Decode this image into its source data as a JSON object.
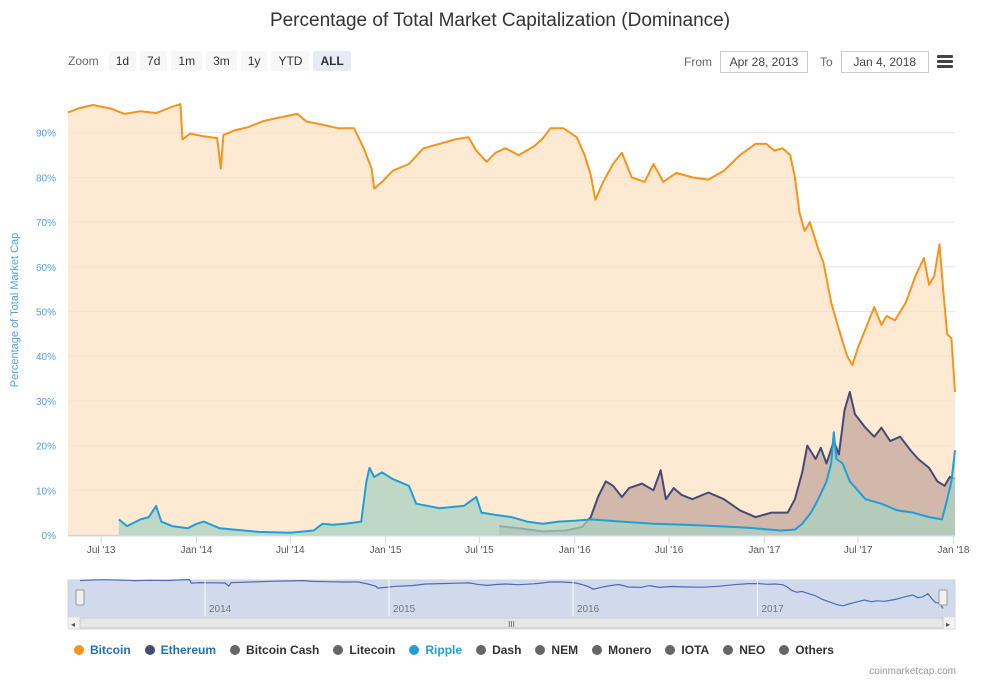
{
  "title": "Percentage of Total Market Capitalization (Dominance)",
  "zoom": {
    "label": "Zoom",
    "buttons": [
      "1d",
      "7d",
      "1m",
      "3m",
      "1y",
      "YTD",
      "ALL"
    ],
    "selected": "ALL"
  },
  "range": {
    "from_label": "From",
    "from_value": "Apr 28, 2013",
    "to_label": "To",
    "to_value": "Jan 4, 2018"
  },
  "navigator": {
    "year_labels": [
      "2014",
      "2015",
      "2016",
      "2017"
    ],
    "scroll_thumb": "III"
  },
  "legend": [
    {
      "name": "Bitcoin",
      "color": "#f7931a",
      "active": true
    },
    {
      "name": "Ethereum",
      "color": "#454a75",
      "active": true
    },
    {
      "name": "Bitcoin Cash",
      "color": "#666666",
      "active": false
    },
    {
      "name": "Litecoin",
      "color": "#666666",
      "active": false
    },
    {
      "name": "Ripple",
      "color": "#1f9fd8",
      "active": true
    },
    {
      "name": "Dash",
      "color": "#666666",
      "active": false
    },
    {
      "name": "NEM",
      "color": "#666666",
      "active": false
    },
    {
      "name": "Monero",
      "color": "#666666",
      "active": false
    },
    {
      "name": "IOTA",
      "color": "#666666",
      "active": false
    },
    {
      "name": "NEO",
      "color": "#666666",
      "active": false
    },
    {
      "name": "Others",
      "color": "#666666",
      "active": false
    }
  ],
  "credit": "coinmarketcap.com",
  "chart_data": {
    "type": "area",
    "title": "Percentage of Total Market Capitalization (Dominance)",
    "ylabel": "Percentage of Total Market Cap",
    "ylim": [
      0,
      100
    ],
    "xlim": [
      "2013-04-28",
      "2018-01-04"
    ],
    "y_ticks": [
      "0%",
      "10%",
      "20%",
      "30%",
      "40%",
      "50%",
      "60%",
      "70%",
      "80%",
      "90%"
    ],
    "x_ticks": [
      {
        "label": "Jul '13",
        "date": "2013-07-01"
      },
      {
        "label": "Jan '14",
        "date": "2014-01-01"
      },
      {
        "label": "Jul '14",
        "date": "2014-07-01"
      },
      {
        "label": "Jan '15",
        "date": "2015-01-01"
      },
      {
        "label": "Jul '15",
        "date": "2015-07-01"
      },
      {
        "label": "Jan '16",
        "date": "2016-01-01"
      },
      {
        "label": "Jul '16",
        "date": "2016-07-01"
      },
      {
        "label": "Jan '17",
        "date": "2017-01-01"
      },
      {
        "label": "Jul '17",
        "date": "2017-07-01"
      },
      {
        "label": "Jan '18",
        "date": "2018-01-01"
      }
    ],
    "grid": true,
    "legend_position": "bottom",
    "series": [
      {
        "name": "Bitcoin",
        "color": "#f7931a",
        "fill": "#fde3c4",
        "points": [
          [
            "2013-04-28",
            94.5
          ],
          [
            "2013-05-20",
            95.5
          ],
          [
            "2013-06-15",
            96.2
          ],
          [
            "2013-07-20",
            95.4
          ],
          [
            "2013-08-15",
            94.2
          ],
          [
            "2013-09-15",
            94.8
          ],
          [
            "2013-10-15",
            94.4
          ],
          [
            "2013-11-15",
            95.8
          ],
          [
            "2013-12-01",
            96.4
          ],
          [
            "2013-12-05",
            88.5
          ],
          [
            "2013-12-20",
            89.8
          ],
          [
            "2014-01-15",
            89.2
          ],
          [
            "2014-02-10",
            88.8
          ],
          [
            "2014-02-17",
            82.0
          ],
          [
            "2014-02-22",
            89.5
          ],
          [
            "2014-03-15",
            90.5
          ],
          [
            "2014-04-10",
            91.2
          ],
          [
            "2014-05-10",
            92.6
          ],
          [
            "2014-06-10",
            93.4
          ],
          [
            "2014-07-15",
            94.2
          ],
          [
            "2014-08-01",
            92.5
          ],
          [
            "2014-09-01",
            91.8
          ],
          [
            "2014-10-01",
            91.0
          ],
          [
            "2014-11-01",
            91.0
          ],
          [
            "2014-11-20",
            86.5
          ],
          [
            "2014-12-05",
            82.0
          ],
          [
            "2014-12-10",
            77.5
          ],
          [
            "2014-12-25",
            79.0
          ],
          [
            "2015-01-15",
            81.5
          ],
          [
            "2015-02-15",
            83.0
          ],
          [
            "2015-03-15",
            86.5
          ],
          [
            "2015-04-15",
            87.5
          ],
          [
            "2015-05-15",
            88.5
          ],
          [
            "2015-06-10",
            89.0
          ],
          [
            "2015-06-25",
            86.0
          ],
          [
            "2015-07-15",
            83.5
          ],
          [
            "2015-08-01",
            85.5
          ],
          [
            "2015-08-20",
            86.5
          ],
          [
            "2015-09-15",
            85.0
          ],
          [
            "2015-10-15",
            87.0
          ],
          [
            "2015-11-01",
            88.8
          ],
          [
            "2015-11-15",
            91.0
          ],
          [
            "2015-12-10",
            91.0
          ],
          [
            "2016-01-05",
            89.0
          ],
          [
            "2016-01-20",
            85.0
          ],
          [
            "2016-02-01",
            80.5
          ],
          [
            "2016-02-10",
            75.0
          ],
          [
            "2016-02-25",
            79.0
          ],
          [
            "2016-03-15",
            83.0
          ],
          [
            "2016-04-01",
            85.5
          ],
          [
            "2016-04-20",
            80.0
          ],
          [
            "2016-05-15",
            79.0
          ],
          [
            "2016-06-01",
            83.0
          ],
          [
            "2016-06-20",
            79.0
          ],
          [
            "2016-07-15",
            81.0
          ],
          [
            "2016-08-15",
            80.0
          ],
          [
            "2016-09-15",
            79.5
          ],
          [
            "2016-10-15",
            81.5
          ],
          [
            "2016-11-15",
            85.0
          ],
          [
            "2016-12-15",
            87.5
          ],
          [
            "2017-01-05",
            87.5
          ],
          [
            "2017-01-20",
            86.0
          ],
          [
            "2017-02-05",
            86.5
          ],
          [
            "2017-02-20",
            85.0
          ],
          [
            "2017-03-01",
            80.0
          ],
          [
            "2017-03-10",
            72.0
          ],
          [
            "2017-03-20",
            68.0
          ],
          [
            "2017-03-30",
            70.0
          ],
          [
            "2017-04-15",
            64.0
          ],
          [
            "2017-04-25",
            61.0
          ],
          [
            "2017-05-10",
            52.0
          ],
          [
            "2017-05-25",
            46.0
          ],
          [
            "2017-06-10",
            40.0
          ],
          [
            "2017-06-20",
            38.0
          ],
          [
            "2017-07-01",
            42.0
          ],
          [
            "2017-07-15",
            46.0
          ],
          [
            "2017-08-01",
            51.0
          ],
          [
            "2017-08-15",
            47.0
          ],
          [
            "2017-08-25",
            49.0
          ],
          [
            "2017-09-10",
            48.0
          ],
          [
            "2017-10-01",
            52.0
          ],
          [
            "2017-10-20",
            58.0
          ],
          [
            "2017-11-05",
            62.0
          ],
          [
            "2017-11-15",
            56.0
          ],
          [
            "2017-11-25",
            58.0
          ],
          [
            "2017-12-05",
            65.0
          ],
          [
            "2017-12-12",
            55.0
          ],
          [
            "2017-12-20",
            45.0
          ],
          [
            "2017-12-28",
            44.0
          ],
          [
            "2018-01-04",
            32.0
          ]
        ]
      },
      {
        "name": "Ethereum",
        "color": "#454a75",
        "fill": "#c3a59d",
        "points": [
          [
            "2015-08-08",
            2.0
          ],
          [
            "2015-09-15",
            1.5
          ],
          [
            "2015-11-01",
            0.8
          ],
          [
            "2015-12-15",
            1.0
          ],
          [
            "2016-01-15",
            1.8
          ],
          [
            "2016-02-01",
            4.0
          ],
          [
            "2016-02-15",
            8.5
          ],
          [
            "2016-03-01",
            12.0
          ],
          [
            "2016-03-15",
            11.0
          ],
          [
            "2016-04-01",
            8.5
          ],
          [
            "2016-04-15",
            10.5
          ],
          [
            "2016-05-10",
            11.5
          ],
          [
            "2016-06-01",
            10.0
          ],
          [
            "2016-06-15",
            14.5
          ],
          [
            "2016-06-25",
            8.0
          ],
          [
            "2016-07-10",
            10.5
          ],
          [
            "2016-07-25",
            9.0
          ],
          [
            "2016-08-15",
            8.0
          ],
          [
            "2016-09-15",
            9.5
          ],
          [
            "2016-10-15",
            8.0
          ],
          [
            "2016-11-15",
            5.5
          ],
          [
            "2016-12-15",
            4.0
          ],
          [
            "2017-01-15",
            5.0
          ],
          [
            "2017-02-15",
            5.0
          ],
          [
            "2017-03-01",
            8.0
          ],
          [
            "2017-03-15",
            14.0
          ],
          [
            "2017-03-25",
            20.0
          ],
          [
            "2017-04-10",
            17.0
          ],
          [
            "2017-04-20",
            19.5
          ],
          [
            "2017-05-01",
            16.0
          ],
          [
            "2017-05-15",
            21.0
          ],
          [
            "2017-05-25",
            18.0
          ],
          [
            "2017-06-05",
            28.0
          ],
          [
            "2017-06-15",
            32.0
          ],
          [
            "2017-06-25",
            27.0
          ],
          [
            "2017-07-15",
            24.0
          ],
          [
            "2017-08-01",
            22.0
          ],
          [
            "2017-08-15",
            24.0
          ],
          [
            "2017-09-01",
            21.0
          ],
          [
            "2017-09-20",
            22.0
          ],
          [
            "2017-10-10",
            19.0
          ],
          [
            "2017-10-25",
            17.0
          ],
          [
            "2017-11-15",
            15.0
          ],
          [
            "2017-12-01",
            12.0
          ],
          [
            "2017-12-15",
            11.0
          ],
          [
            "2017-12-25",
            13.0
          ],
          [
            "2018-01-04",
            12.5
          ]
        ]
      },
      {
        "name": "Ripple",
        "color": "#1f9fd8",
        "fill": "#a9d0c0",
        "points": [
          [
            "2013-08-04",
            3.5
          ],
          [
            "2013-08-20",
            2.0
          ],
          [
            "2013-09-15",
            3.5
          ],
          [
            "2013-10-01",
            4.0
          ],
          [
            "2013-10-15",
            6.5
          ],
          [
            "2013-10-25",
            3.0
          ],
          [
            "2013-11-15",
            2.0
          ],
          [
            "2013-12-15",
            1.5
          ],
          [
            "2014-01-01",
            2.5
          ],
          [
            "2014-01-15",
            3.0
          ],
          [
            "2014-02-15",
            1.5
          ],
          [
            "2014-03-15",
            1.2
          ],
          [
            "2014-05-01",
            0.7
          ],
          [
            "2014-07-01",
            0.5
          ],
          [
            "2014-08-15",
            1.0
          ],
          [
            "2014-09-01",
            2.5
          ],
          [
            "2014-09-20",
            2.3
          ],
          [
            "2014-10-15",
            2.5
          ],
          [
            "2014-11-15",
            3.0
          ],
          [
            "2014-11-25",
            12.0
          ],
          [
            "2014-12-01",
            15.0
          ],
          [
            "2014-12-10",
            13.0
          ],
          [
            "2014-12-25",
            14.0
          ],
          [
            "2015-01-15",
            12.5
          ],
          [
            "2015-02-15",
            11.0
          ],
          [
            "2015-03-01",
            7.0
          ],
          [
            "2015-04-15",
            6.0
          ],
          [
            "2015-06-01",
            6.5
          ],
          [
            "2015-06-25",
            8.5
          ],
          [
            "2015-07-05",
            5.0
          ],
          [
            "2015-08-01",
            4.5
          ],
          [
            "2015-09-01",
            4.0
          ],
          [
            "2015-10-01",
            3.0
          ],
          [
            "2015-11-01",
            2.5
          ],
          [
            "2015-12-01",
            3.0
          ],
          [
            "2016-01-01",
            3.2
          ],
          [
            "2016-02-01",
            3.5
          ],
          [
            "2016-04-01",
            3.0
          ],
          [
            "2016-06-01",
            2.5
          ],
          [
            "2016-08-01",
            2.3
          ],
          [
            "2016-10-01",
            2.0
          ],
          [
            "2016-12-01",
            1.6
          ],
          [
            "2017-02-01",
            1.0
          ],
          [
            "2017-03-01",
            1.2
          ],
          [
            "2017-03-15",
            2.5
          ],
          [
            "2017-04-01",
            5.0
          ],
          [
            "2017-04-15",
            8.0
          ],
          [
            "2017-05-01",
            12.0
          ],
          [
            "2017-05-10",
            16.0
          ],
          [
            "2017-05-15",
            23.0
          ],
          [
            "2017-05-20",
            17.0
          ],
          [
            "2017-06-01",
            16.0
          ],
          [
            "2017-06-15",
            12.0
          ],
          [
            "2017-07-15",
            8.0
          ],
          [
            "2017-08-15",
            7.0
          ],
          [
            "2017-09-15",
            5.5
          ],
          [
            "2017-10-15",
            5.0
          ],
          [
            "2017-11-15",
            4.0
          ],
          [
            "2017-12-10",
            3.5
          ],
          [
            "2017-12-20",
            8.0
          ],
          [
            "2017-12-28",
            12.0
          ],
          [
            "2018-01-04",
            19.0
          ]
        ]
      }
    ]
  }
}
